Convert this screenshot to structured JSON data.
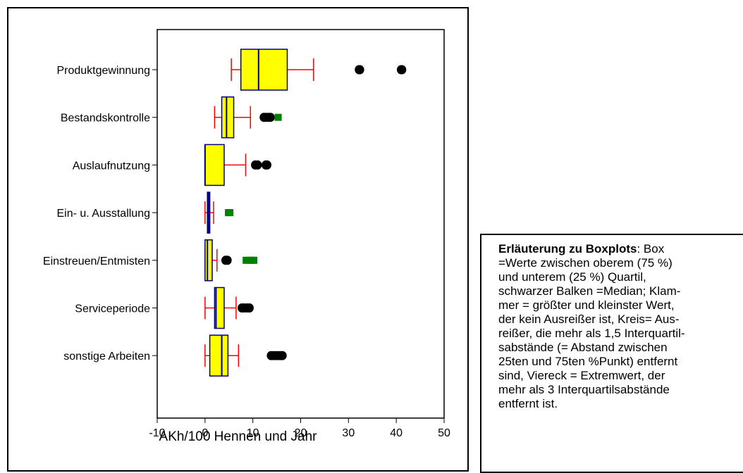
{
  "chart_data": {
    "type": "boxplot",
    "orientation": "horizontal",
    "xlabel": "AKh/100 Hennen und Jahr",
    "xlim": [
      -10,
      50
    ],
    "xticks": [
      -10,
      0,
      10,
      20,
      30,
      40,
      50
    ],
    "grid": false,
    "categories": [
      "Produktgewinnung",
      "Bestandskontrolle",
      "Auslaufnutzung",
      "Ein- u. Ausstallung",
      "Einstreuen/Entmisten",
      "Serviceperiode",
      "sonstige Arbeiten"
    ],
    "boxes": [
      {
        "category": "Produktgewinnung",
        "whisker_low": 5.5,
        "q1": 7.5,
        "median": 11.2,
        "q3": 17.2,
        "whisker_high": 22.7,
        "outliers": [
          32.2,
          32.4,
          41.0,
          41.2
        ],
        "extremes": []
      },
      {
        "category": "Bestandskontrolle",
        "whisker_low": 2.0,
        "q1": 3.5,
        "median": 4.5,
        "q3": 6.0,
        "whisker_high": 9.5,
        "outliers": [
          12.3,
          12.7,
          13.2,
          13.7
        ],
        "extremes": [
          15.3
        ]
      },
      {
        "category": "Auslaufnutzung",
        "whisker_low": 0.0,
        "q1": 0.0,
        "median": 0.0,
        "q3": 4.0,
        "whisker_high": 8.5,
        "outliers": [
          10.5,
          11.0,
          12.7,
          13.0
        ],
        "extremes": []
      },
      {
        "category": "Ein- u. Ausstallung",
        "whisker_low": 0.0,
        "q1": 0.5,
        "median": 0.8,
        "q3": 1.0,
        "whisker_high": 1.8,
        "outliers": [],
        "extremes": [
          4.9,
          5.2
        ]
      },
      {
        "category": "Einstreuen/Entmisten",
        "whisker_low": 0.0,
        "q1": 0.0,
        "median": 0.5,
        "q3": 1.5,
        "whisker_high": 2.5,
        "outliers": [
          4.3,
          4.7
        ],
        "extremes": [
          8.6,
          9.2,
          9.8,
          10.2
        ]
      },
      {
        "category": "Serviceperiode",
        "whisker_low": 0.0,
        "q1": 2.0,
        "median": 2.3,
        "q3": 4.0,
        "whisker_high": 6.5,
        "outliers": [
          7.7,
          8.2,
          8.8,
          9.3
        ],
        "extremes": []
      },
      {
        "category": "sonstige Arbeiten",
        "whisker_low": 0.0,
        "q1": 1.0,
        "median": 3.5,
        "q3": 4.8,
        "whisker_high": 7.0,
        "outliers": [
          13.8,
          14.3,
          14.8,
          15.3,
          15.8,
          16.2
        ],
        "extremes": []
      }
    ],
    "colors": {
      "box_fill": "#ffff00",
      "box_fill_small": "#2020a0",
      "box_edge": "#000080",
      "median": "#000080",
      "whisker": "#ff0000",
      "outlier": "#000000",
      "extreme": "#008000"
    }
  },
  "explanation": {
    "bold_title": "Erläuterung zu Boxplots",
    "lines": [
      ": Box",
      "=Werte zwischen oberem (75 %)",
      "und unterem (25 %) Quartil,",
      "schwarzer Balken =Median; Klam-",
      "mer = größter und kleinster Wert,",
      "der kein Ausreißer ist, Kreis= Aus-",
      "reißer, die mehr als 1,5 Interquartil-",
      "sabstände (= Abstand zwischen",
      "25ten und 75ten %Punkt) entfernt",
      "sind,  Viereck = Extremwert, der",
      "mehr als 3 Interquartilsabstände",
      "entfernt ist."
    ]
  }
}
